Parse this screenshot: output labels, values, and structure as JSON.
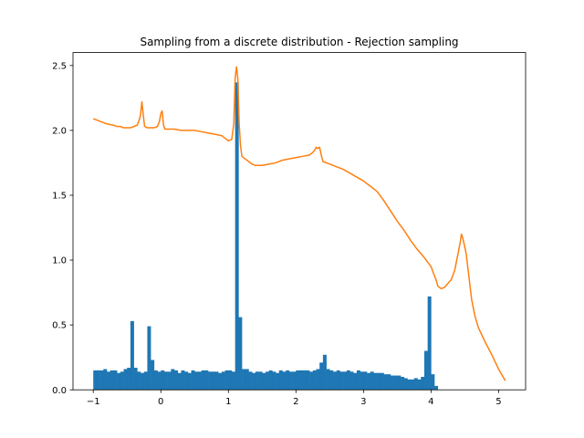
{
  "chart_data": {
    "type": "bar",
    "title": "Sampling from a discrete distribution - Rejection sampling",
    "xlabel": "",
    "ylabel": "",
    "xlim": [
      -1.3,
      5.4
    ],
    "ylim": [
      0,
      2.6
    ],
    "xticks": [
      -1,
      0,
      1,
      2,
      3,
      4,
      5
    ],
    "yticks": [
      0.0,
      0.5,
      1.0,
      1.5,
      2.0,
      2.5
    ],
    "ytick_labels": [
      "0.0",
      "0.5",
      "1.0",
      "1.5",
      "2.0",
      "2.5"
    ],
    "grid": false,
    "legend": "none",
    "histogram": {
      "bin_start": -1.0,
      "bin_width": 0.05,
      "color": "#1f77b4",
      "values": [
        0.15,
        0.15,
        0.15,
        0.16,
        0.14,
        0.15,
        0.15,
        0.13,
        0.14,
        0.16,
        0.17,
        0.53,
        0.17,
        0.14,
        0.13,
        0.14,
        0.49,
        0.23,
        0.15,
        0.14,
        0.15,
        0.14,
        0.14,
        0.16,
        0.15,
        0.13,
        0.15,
        0.14,
        0.13,
        0.15,
        0.14,
        0.14,
        0.15,
        0.15,
        0.14,
        0.14,
        0.14,
        0.13,
        0.14,
        0.15,
        0.15,
        0.14,
        2.37,
        0.56,
        0.16,
        0.16,
        0.14,
        0.13,
        0.14,
        0.14,
        0.13,
        0.14,
        0.15,
        0.14,
        0.13,
        0.15,
        0.14,
        0.15,
        0.14,
        0.14,
        0.15,
        0.15,
        0.15,
        0.15,
        0.14,
        0.15,
        0.16,
        0.21,
        0.27,
        0.16,
        0.15,
        0.14,
        0.15,
        0.14,
        0.14,
        0.15,
        0.14,
        0.13,
        0.15,
        0.14,
        0.14,
        0.13,
        0.14,
        0.13,
        0.13,
        0.13,
        0.12,
        0.12,
        0.11,
        0.11,
        0.11,
        0.1,
        0.09,
        0.08,
        0.08,
        0.09,
        0.08,
        0.1,
        0.3,
        0.72,
        0.12,
        0.03
      ]
    },
    "series": [
      {
        "type": "line",
        "color": "#ff7f0e",
        "x": [
          -1.0,
          -0.9,
          -0.8,
          -0.7,
          -0.65,
          -0.6,
          -0.55,
          -0.5,
          -0.45,
          -0.4,
          -0.35,
          -0.32,
          -0.3,
          -0.28,
          -0.26,
          -0.24,
          -0.2,
          -0.15,
          -0.1,
          -0.05,
          -0.02,
          0.0,
          0.02,
          0.04,
          0.06,
          0.1,
          0.2,
          0.3,
          0.4,
          0.5,
          0.6,
          0.7,
          0.8,
          0.9,
          0.95,
          1.0,
          1.05,
          1.08,
          1.1,
          1.12,
          1.14,
          1.16,
          1.18,
          1.2,
          1.25,
          1.3,
          1.35,
          1.4,
          1.5,
          1.6,
          1.7,
          1.8,
          1.9,
          2.0,
          2.1,
          2.2,
          2.25,
          2.28,
          2.3,
          2.32,
          2.35,
          2.38,
          2.4,
          2.5,
          2.6,
          2.7,
          2.8,
          2.9,
          3.0,
          3.1,
          3.2,
          3.3,
          3.4,
          3.5,
          3.6,
          3.7,
          3.8,
          3.9,
          4.0,
          4.05,
          4.08,
          4.1,
          4.15,
          4.2,
          4.25,
          4.3,
          4.35,
          4.4,
          4.43,
          4.45,
          4.47,
          4.5,
          4.52,
          4.55,
          4.6,
          4.65,
          4.7,
          4.8,
          4.9,
          5.0,
          5.1
        ],
        "y": [
          2.09,
          2.07,
          2.05,
          2.04,
          2.03,
          2.03,
          2.02,
          2.02,
          2.02,
          2.03,
          2.04,
          2.08,
          2.12,
          2.22,
          2.12,
          2.03,
          2.02,
          2.02,
          2.02,
          2.03,
          2.07,
          2.13,
          2.15,
          2.04,
          2.01,
          2.01,
          2.01,
          2.0,
          2.0,
          2.0,
          1.99,
          1.98,
          1.97,
          1.96,
          1.94,
          1.92,
          1.93,
          2.05,
          2.4,
          2.49,
          2.4,
          2.05,
          1.88,
          1.8,
          1.78,
          1.76,
          1.74,
          1.73,
          1.73,
          1.74,
          1.75,
          1.77,
          1.78,
          1.79,
          1.8,
          1.81,
          1.83,
          1.85,
          1.87,
          1.86,
          1.87,
          1.8,
          1.76,
          1.74,
          1.72,
          1.7,
          1.67,
          1.64,
          1.61,
          1.57,
          1.53,
          1.46,
          1.38,
          1.3,
          1.23,
          1.15,
          1.08,
          1.02,
          0.95,
          0.88,
          0.84,
          0.8,
          0.78,
          0.79,
          0.82,
          0.85,
          0.92,
          1.05,
          1.13,
          1.2,
          1.17,
          1.1,
          1.05,
          0.92,
          0.7,
          0.57,
          0.48,
          0.37,
          0.27,
          0.16,
          0.07
        ]
      }
    ]
  }
}
